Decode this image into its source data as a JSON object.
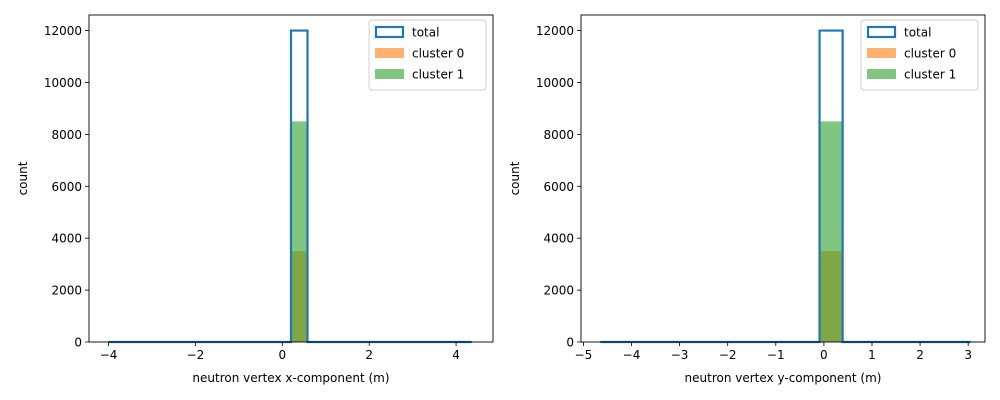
{
  "colors": {
    "total": "#1f77b4",
    "cluster0": "#ff7f0e",
    "cluster1": "#2ca02c"
  },
  "chart_data": [
    {
      "type": "histogram",
      "xlabel": "neutron vertex x-component (m)",
      "ylabel": "count",
      "xlim": [
        -4.45,
        4.85
      ],
      "ylim": [
        0,
        12600
      ],
      "xticks": [
        -4,
        -2,
        0,
        2,
        4
      ],
      "xtick_labels": [
        "−4",
        "−2",
        "0",
        "2",
        "4"
      ],
      "yticks": [
        0,
        2000,
        4000,
        6000,
        8000,
        10000,
        12000
      ],
      "ytick_labels": [
        "0",
        "2000",
        "4000",
        "6000",
        "8000",
        "10000",
        "12000"
      ],
      "legend_position": "top-right",
      "bin_edges": [
        -4.0,
        -3.58,
        -3.16,
        -2.74,
        -2.32,
        -1.9,
        -1.48,
        -1.06,
        -0.64,
        -0.22,
        0.2,
        0.58,
        1.0,
        1.42,
        1.84,
        2.26,
        2.68,
        3.1,
        3.52,
        3.94,
        4.36
      ],
      "series": [
        {
          "name": "total",
          "style": "step",
          "values": [
            0,
            0,
            0,
            0,
            0,
            0,
            0,
            0,
            0,
            0,
            12000,
            0,
            0,
            0,
            0,
            0,
            0,
            0,
            0,
            0
          ]
        },
        {
          "name": "cluster 0",
          "style": "fill",
          "values": [
            0,
            0,
            0,
            0,
            0,
            0,
            0,
            0,
            0,
            0,
            3500,
            0,
            0,
            0,
            0,
            0,
            0,
            0,
            0,
            0
          ]
        },
        {
          "name": "cluster 1",
          "style": "fill",
          "values": [
            0,
            0,
            0,
            0,
            0,
            0,
            0,
            0,
            0,
            0,
            8500,
            0,
            0,
            0,
            0,
            0,
            0,
            0,
            0,
            0
          ]
        }
      ]
    },
    {
      "type": "histogram",
      "xlabel": "neutron vertex y-component (m)",
      "ylabel": "count",
      "xlim": [
        -5.05,
        3.35
      ],
      "ylim": [
        0,
        12600
      ],
      "xticks": [
        -5,
        -4,
        -3,
        -2,
        -1,
        0,
        1,
        2,
        3
      ],
      "xtick_labels": [
        "−5",
        "−4",
        "−3",
        "−2",
        "−1",
        "0",
        "1",
        "2",
        "3"
      ],
      "yticks": [
        0,
        2000,
        4000,
        6000,
        8000,
        10000,
        12000
      ],
      "ytick_labels": [
        "0",
        "2000",
        "4000",
        "6000",
        "8000",
        "10000",
        "12000"
      ],
      "legend_position": "top-right",
      "bin_edges": [
        -4.65,
        -4.27,
        -3.89,
        -3.51,
        -3.13,
        -2.75,
        -2.37,
        -1.99,
        -1.61,
        -1.23,
        -0.85,
        -0.47,
        -0.09,
        0.39,
        0.77,
        1.15,
        1.53,
        1.91,
        2.29,
        2.67,
        3.05
      ],
      "series": [
        {
          "name": "total",
          "style": "step",
          "values": [
            0,
            0,
            0,
            0,
            0,
            0,
            0,
            0,
            0,
            0,
            0,
            0,
            12000,
            0,
            0,
            0,
            0,
            0,
            0,
            0
          ]
        },
        {
          "name": "cluster 0",
          "style": "fill",
          "values": [
            0,
            0,
            0,
            0,
            0,
            0,
            0,
            0,
            0,
            0,
            0,
            0,
            3500,
            0,
            0,
            0,
            0,
            0,
            0,
            0
          ]
        },
        {
          "name": "cluster 1",
          "style": "fill",
          "values": [
            0,
            0,
            0,
            0,
            0,
            0,
            0,
            0,
            0,
            0,
            0,
            0,
            8500,
            0,
            0,
            0,
            0,
            0,
            0,
            0
          ]
        }
      ]
    }
  ]
}
